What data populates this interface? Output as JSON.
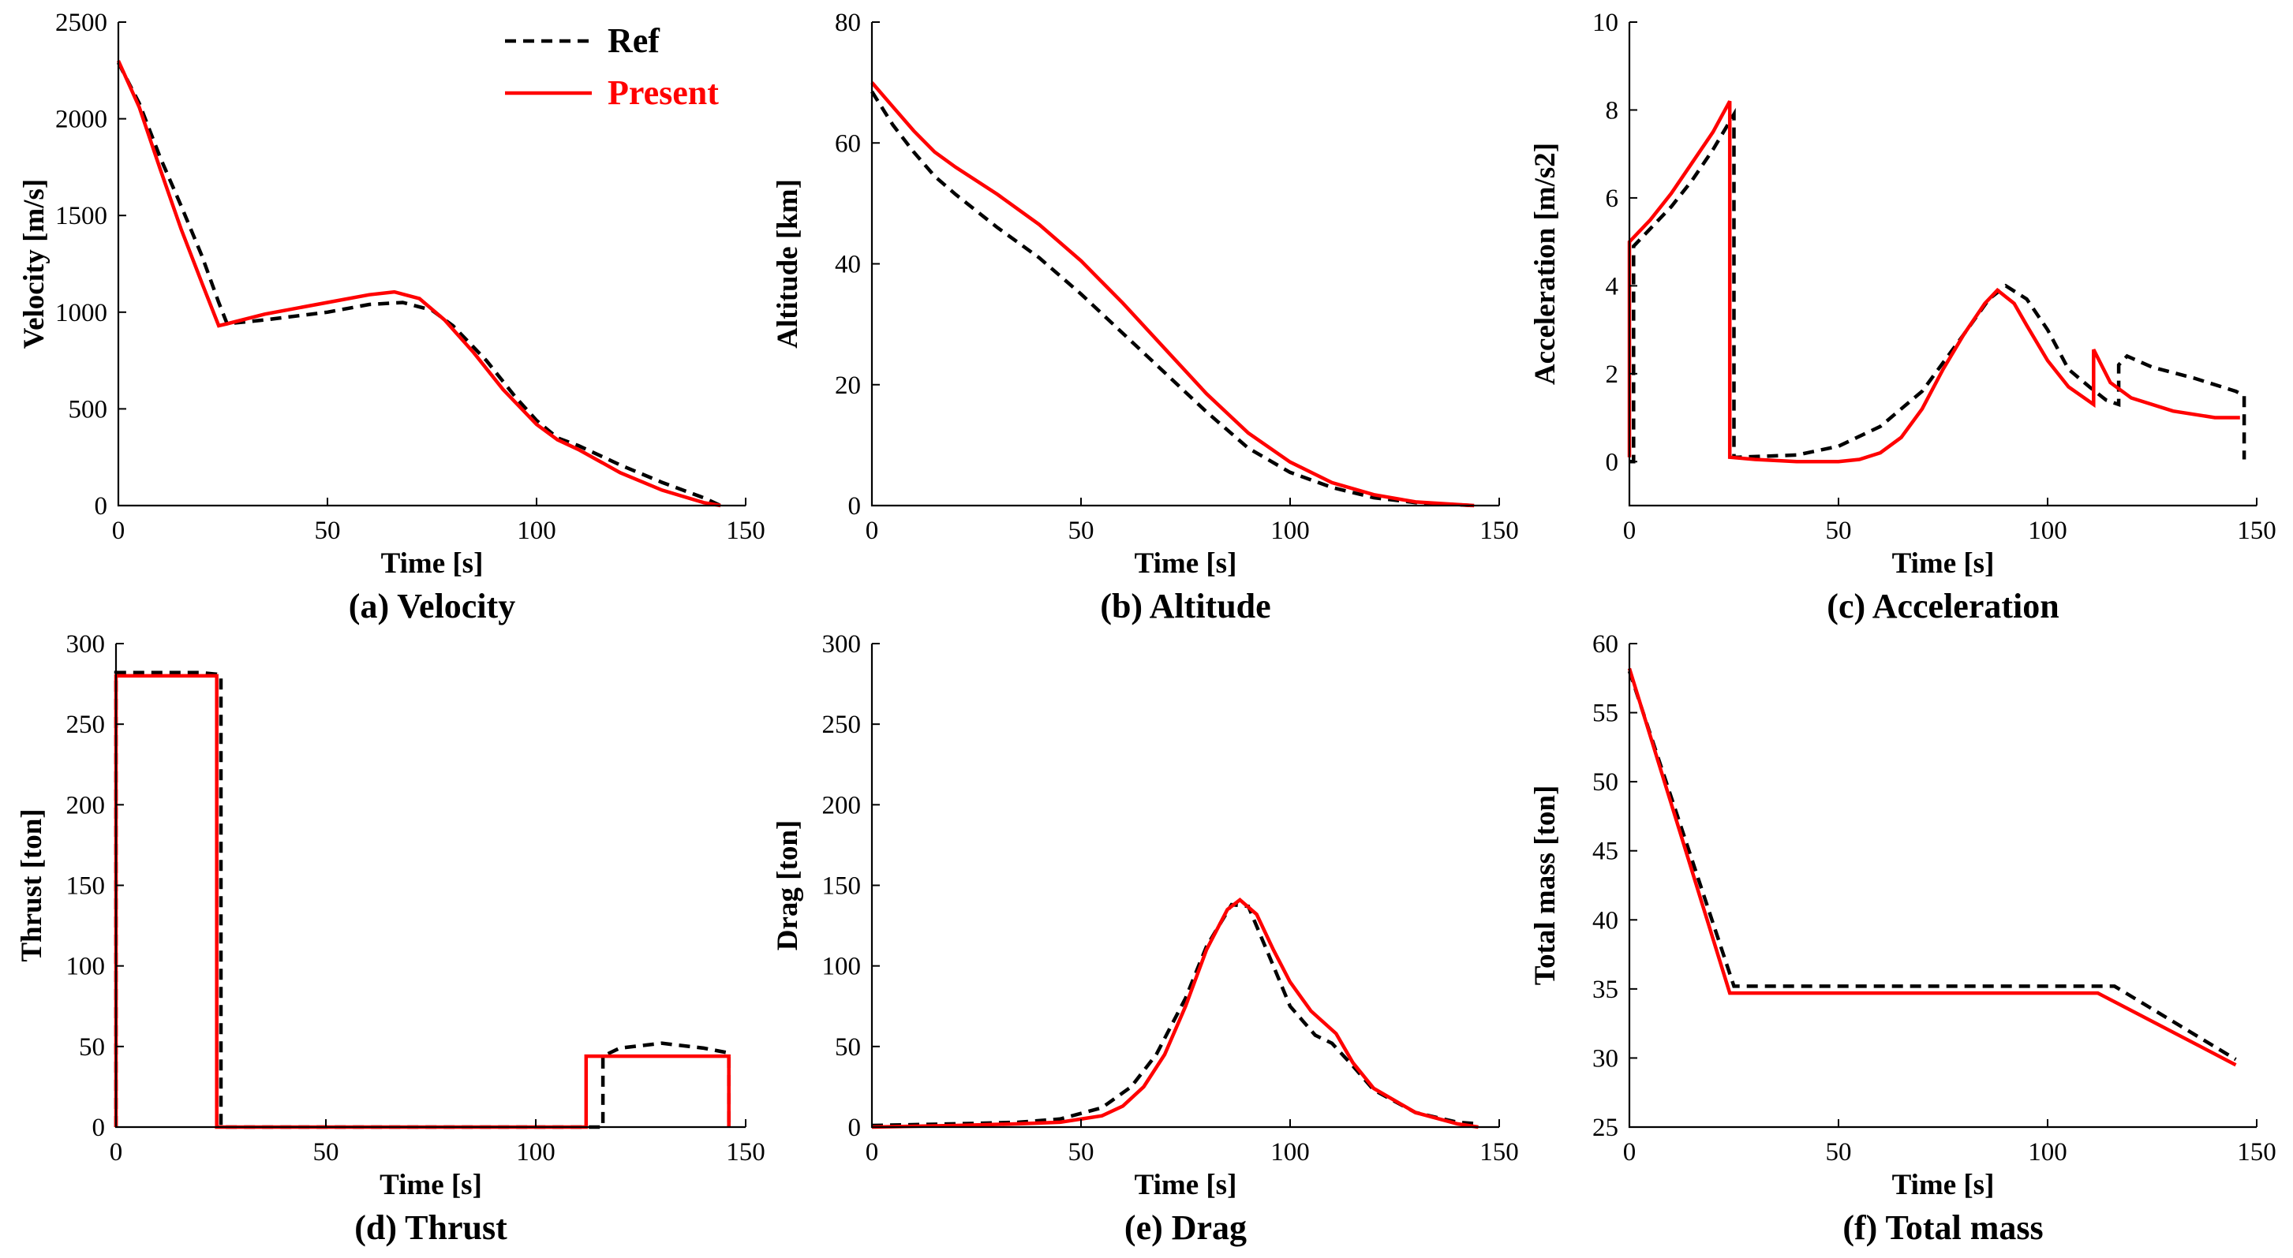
{
  "colors": {
    "ref": "#000000",
    "present": "#ff0000"
  },
  "legend": {
    "position": "top-right-of-first-panel",
    "entries": [
      {
        "name": "Ref",
        "color": "#000000",
        "style": "dashed"
      },
      {
        "name": "Present",
        "color": "#ff0000",
        "style": "solid"
      }
    ]
  },
  "chart_data": [
    {
      "type": "line",
      "caption": "(a) Velocity",
      "xlabel": "Time [s]",
      "ylabel": "Velocity [m/s]",
      "xlim": [
        0,
        150
      ],
      "ylim": [
        0,
        2500
      ],
      "xticks": [
        0,
        50,
        100,
        150
      ],
      "xtick_labels": [
        "0",
        "50",
        "100",
        "150"
      ],
      "yticks": [
        0,
        500,
        1000,
        1500,
        2000,
        2500
      ],
      "ytick_labels": [
        "0",
        "500",
        "1000",
        "1500",
        "2000",
        "2500"
      ],
      "grid": false,
      "series": [
        {
          "name": "Ref",
          "x": [
            0,
            5,
            10,
            15,
            20,
            24,
            26,
            35,
            50,
            60,
            68,
            75,
            80,
            88,
            95,
            100,
            105,
            110,
            115,
            120,
            130,
            140,
            144
          ],
          "y": [
            2290,
            2080,
            1800,
            1550,
            1290,
            1050,
            940,
            960,
            1000,
            1040,
            1050,
            1010,
            930,
            750,
            560,
            440,
            350,
            310,
            260,
            210,
            120,
            40,
            0
          ]
        },
        {
          "name": "Present",
          "x": [
            0,
            5,
            10,
            15,
            20,
            24,
            26,
            35,
            50,
            60,
            66,
            72,
            78,
            85,
            92,
            100,
            105,
            110,
            115,
            120,
            130,
            140,
            144
          ],
          "y": [
            2300,
            2060,
            1740,
            1430,
            1150,
            930,
            940,
            990,
            1050,
            1090,
            1105,
            1070,
            960,
            790,
            600,
            420,
            340,
            290,
            230,
            170,
            80,
            15,
            0
          ]
        }
      ]
    },
    {
      "type": "line",
      "caption": "(b) Altitude",
      "xlabel": "Time [s]",
      "ylabel": "Altitude [km]",
      "xlim": [
        0,
        150
      ],
      "ylim": [
        0,
        80
      ],
      "xticks": [
        0,
        50,
        100,
        150
      ],
      "xtick_labels": [
        "0",
        "50",
        "100",
        "150"
      ],
      "yticks": [
        0,
        20,
        40,
        60,
        80
      ],
      "ytick_labels": [
        "0",
        "20",
        "40",
        "60",
        "80"
      ],
      "grid": false,
      "series": [
        {
          "name": "Ref",
          "x": [
            0,
            5,
            10,
            15,
            20,
            30,
            40,
            50,
            60,
            70,
            80,
            90,
            100,
            110,
            120,
            130,
            144
          ],
          "y": [
            68.5,
            63,
            58.5,
            54.5,
            51.5,
            46,
            41,
            35,
            28.5,
            22,
            15.5,
            9.5,
            5.5,
            3,
            1.3,
            0.5,
            0
          ]
        },
        {
          "name": "Present",
          "x": [
            0,
            5,
            10,
            15,
            20,
            30,
            40,
            50,
            60,
            70,
            80,
            90,
            100,
            110,
            120,
            130,
            144
          ],
          "y": [
            70,
            66,
            62,
            58.5,
            56,
            51.5,
            46.5,
            40.5,
            33.5,
            26,
            18.5,
            12,
            7.2,
            3.8,
            1.8,
            0.6,
            0
          ]
        }
      ]
    },
    {
      "type": "line",
      "caption": "(c) Acceleration",
      "xlabel": "Time [s]",
      "ylabel": "Acceleration [m/s2]",
      "xlim": [
        0,
        150
      ],
      "ylim": [
        -1,
        10
      ],
      "xticks": [
        0,
        50,
        100,
        150
      ],
      "xtick_labels": [
        "0",
        "50",
        "100",
        "150"
      ],
      "yticks": [
        0,
        2,
        4,
        6,
        8,
        10
      ],
      "ytick_labels": [
        "0",
        "2",
        "4",
        "6",
        "8",
        "10"
      ],
      "grid": false,
      "series": [
        {
          "name": "Ref",
          "x": [
            0,
            1,
            1,
            5,
            10,
            15,
            20,
            25,
            25,
            26,
            26,
            40,
            50,
            60,
            70,
            80,
            86,
            90,
            95,
            100,
            105,
            110,
            114,
            117,
            117,
            119,
            125,
            135,
            145,
            147,
            147
          ],
          "y": [
            0,
            0,
            4.9,
            5.3,
            5.8,
            6.4,
            7.1,
            7.9,
            0.1,
            0.1,
            0.1,
            0.15,
            0.35,
            0.8,
            1.6,
            2.9,
            3.7,
            4.0,
            3.7,
            3.0,
            2.1,
            1.7,
            1.4,
            1.3,
            2.2,
            2.4,
            2.15,
            1.9,
            1.6,
            1.5,
            0.05
          ]
        },
        {
          "name": "Present",
          "x": [
            0,
            0,
            5,
            10,
            15,
            20,
            24,
            24,
            30,
            40,
            50,
            55,
            60,
            65,
            70,
            75,
            80,
            85,
            88,
            92,
            95,
            100,
            105,
            111,
            111,
            115,
            120,
            130,
            140,
            146
          ],
          "y": [
            0.1,
            5.0,
            5.5,
            6.1,
            6.8,
            7.5,
            8.2,
            0.1,
            0.05,
            0.0,
            0.0,
            0.05,
            0.2,
            0.55,
            1.2,
            2.1,
            2.9,
            3.6,
            3.9,
            3.6,
            3.1,
            2.3,
            1.7,
            1.3,
            2.55,
            1.8,
            1.45,
            1.15,
            1.0,
            1.0
          ]
        }
      ]
    },
    {
      "type": "line",
      "caption": "(d) Thrust",
      "xlabel": "Time [s]",
      "ylabel": "Thrust [ton]",
      "xlim": [
        0,
        150
      ],
      "ylim": [
        0,
        300
      ],
      "xticks": [
        0,
        50,
        100,
        150
      ],
      "xtick_labels": [
        "0",
        "50",
        "100",
        "150"
      ],
      "yticks": [
        0,
        50,
        100,
        150,
        200,
        250,
        300
      ],
      "ytick_labels": [
        "0",
        "50",
        "100",
        "150",
        "200",
        "250",
        "300"
      ],
      "grid": false,
      "series": [
        {
          "name": "Ref",
          "x": [
            0,
            0,
            20,
            24,
            25,
            25,
            116,
            116,
            120,
            130,
            140,
            146,
            146
          ],
          "y": [
            0,
            282,
            282,
            281,
            280,
            0,
            0,
            44,
            49,
            52,
            49,
            46,
            0
          ]
        },
        {
          "name": "Present",
          "x": [
            0,
            0,
            24,
            24,
            112,
            112,
            146,
            146
          ],
          "y": [
            0,
            280,
            280,
            0,
            0,
            44,
            44,
            0
          ]
        }
      ]
    },
    {
      "type": "line",
      "caption": "(e) Drag",
      "xlabel": "Time [s]",
      "ylabel": "Drag [ton]",
      "xlim": [
        0,
        150
      ],
      "ylim": [
        0,
        300
      ],
      "xticks": [
        0,
        50,
        100,
        150
      ],
      "xtick_labels": [
        "0",
        "50",
        "100",
        "150"
      ],
      "yticks": [
        0,
        50,
        100,
        150,
        200,
        250,
        300
      ],
      "ytick_labels": [
        "0",
        "50",
        "100",
        "150",
        "200",
        "250",
        "300"
      ],
      "grid": false,
      "series": [
        {
          "name": "Ref",
          "x": [
            0,
            20,
            35,
            45,
            55,
            62,
            68,
            75,
            80,
            86,
            90,
            96,
            100,
            106,
            110,
            115,
            120,
            130,
            140,
            145
          ],
          "y": [
            1,
            2,
            3,
            5,
            12,
            25,
            45,
            80,
            112,
            138,
            137,
            100,
            75,
            57,
            52,
            38,
            23,
            9,
            3,
            2
          ]
        },
        {
          "name": "Present",
          "x": [
            0,
            20,
            35,
            45,
            55,
            60,
            65,
            70,
            75,
            80,
            85,
            88,
            92,
            96,
            100,
            105,
            111,
            115,
            120,
            130,
            140,
            145
          ],
          "y": [
            0,
            1,
            2,
            3,
            7,
            13,
            25,
            45,
            75,
            110,
            135,
            141,
            132,
            110,
            90,
            72,
            58,
            40,
            24,
            9,
            2,
            0
          ]
        }
      ]
    },
    {
      "type": "line",
      "caption": "(f) Total mass",
      "xlabel": "Time [s]",
      "ylabel": "Total mass [ton]",
      "xlim": [
        0,
        150
      ],
      "ylim": [
        25,
        60
      ],
      "xticks": [
        0,
        50,
        100,
        150
      ],
      "xtick_labels": [
        "0",
        "50",
        "100",
        "150"
      ],
      "yticks": [
        25,
        30,
        35,
        40,
        45,
        50,
        55,
        60
      ],
      "ytick_labels": [
        "25",
        "30",
        "35",
        "40",
        "45",
        "50",
        "55",
        "60"
      ],
      "grid": false,
      "series": [
        {
          "name": "Ref",
          "x": [
            0,
            25,
            116,
            145
          ],
          "y": [
            58,
            35.2,
            35.2,
            29.9
          ]
        },
        {
          "name": "Present",
          "x": [
            0,
            24,
            112,
            145
          ],
          "y": [
            58.2,
            34.7,
            34.7,
            29.5
          ]
        }
      ]
    }
  ]
}
